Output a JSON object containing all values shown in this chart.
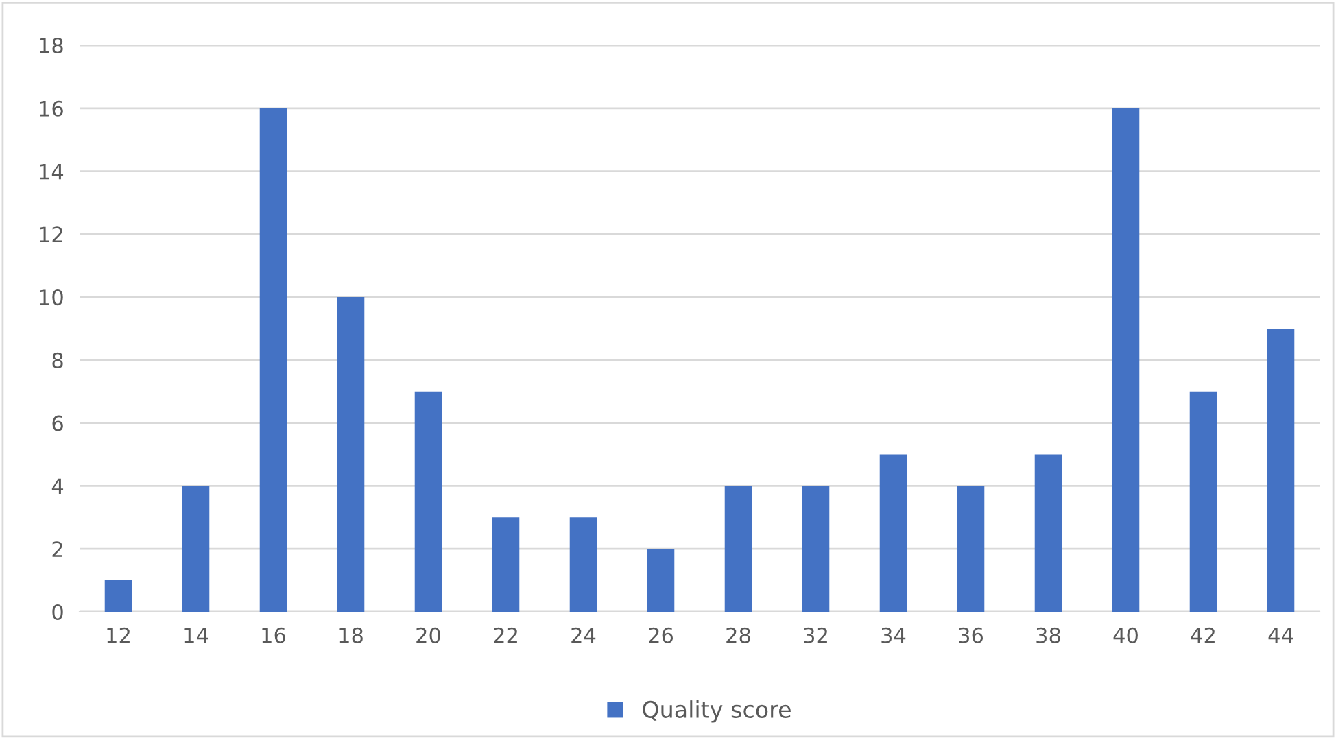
{
  "chart_data": {
    "type": "bar",
    "categories": [
      "12",
      "14",
      "16",
      "18",
      "20",
      "22",
      "24",
      "26",
      "28",
      "32",
      "34",
      "36",
      "38",
      "40",
      "42",
      "44"
    ],
    "series": [
      {
        "name": "Quality score",
        "color": "#4472c4",
        "values": [
          1,
          4,
          16,
          10,
          7,
          3,
          3,
          2,
          4,
          4,
          5,
          4,
          5,
          16,
          7,
          9
        ]
      }
    ],
    "ylim": [
      0,
      18
    ],
    "yticks": [
      0,
      2,
      4,
      6,
      8,
      10,
      12,
      14,
      16,
      18
    ],
    "grid": "y",
    "legend": "bottom"
  }
}
